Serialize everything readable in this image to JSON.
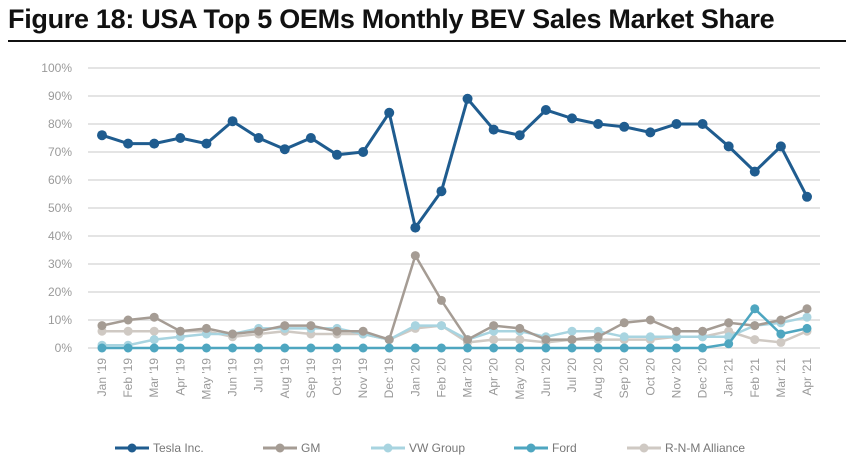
{
  "chart_data": {
    "type": "line",
    "title": "Figure 18: USA Top 5 OEMs Monthly BEV Sales Market Share",
    "xlabel": "",
    "ylabel": "",
    "ylim": [
      0,
      100
    ],
    "yticks": [
      "0%",
      "10%",
      "20%",
      "30%",
      "40%",
      "50%",
      "60%",
      "70%",
      "80%",
      "90%",
      "100%"
    ],
    "grid": true,
    "legend": "bottom",
    "categories": [
      "Jan '19",
      "Feb '19",
      "Mar '19",
      "Apr '19",
      "May '19",
      "Jun '19",
      "Jul '19",
      "Aug '19",
      "Sep '19",
      "Oct '19",
      "Nov '19",
      "Dec '19",
      "Jan '20",
      "Feb '20",
      "Mar '20",
      "Apr '20",
      "May '20",
      "Jun '20",
      "Jul '20",
      "Aug '20",
      "Sep '20",
      "Oct '20",
      "Nov '20",
      "Dec '20",
      "Jan '21",
      "Feb '21",
      "Mar '21",
      "Apr '21"
    ],
    "series": [
      {
        "name": "Tesla Inc.",
        "color": "#1f5c8f",
        "values": [
          76,
          73,
          73,
          75,
          73,
          81,
          75,
          71,
          75,
          69,
          70,
          84,
          43,
          56,
          89,
          78,
          76,
          85,
          82,
          80,
          79,
          77,
          80,
          80,
          72,
          63,
          72,
          54
        ]
      },
      {
        "name": "GM",
        "color": "#a59c94",
        "values": [
          8,
          10,
          11,
          6,
          7,
          5,
          6,
          8,
          8,
          6,
          6,
          3,
          33,
          17,
          3,
          8,
          7,
          3,
          3,
          4,
          9,
          10,
          6,
          6,
          9,
          8,
          10,
          14
        ]
      },
      {
        "name": "VW Group",
        "color": "#a8d4e0",
        "values": [
          1,
          1,
          3,
          4,
          5,
          5,
          7,
          7,
          7,
          7,
          5,
          3,
          8,
          8,
          3,
          6,
          6,
          4,
          6,
          6,
          4,
          4,
          4,
          4,
          4,
          8,
          9,
          11
        ]
      },
      {
        "name": "Ford",
        "color": "#4ea6c0",
        "values": [
          0,
          0,
          0,
          0,
          0,
          0,
          0,
          0,
          0,
          0,
          0,
          0,
          0,
          0,
          0,
          0,
          0,
          0,
          0,
          0,
          0,
          0,
          0,
          0,
          1.5,
          14,
          5,
          7
        ]
      },
      {
        "name": "R-N-M Alliance",
        "color": "#cfc9c3",
        "values": [
          6,
          6,
          6,
          6,
          6,
          4,
          5,
          6,
          5,
          5,
          5,
          3,
          7,
          8,
          2,
          3,
          3,
          2,
          3,
          3,
          3,
          3,
          4,
          4,
          6,
          3,
          2,
          6
        ]
      }
    ]
  }
}
